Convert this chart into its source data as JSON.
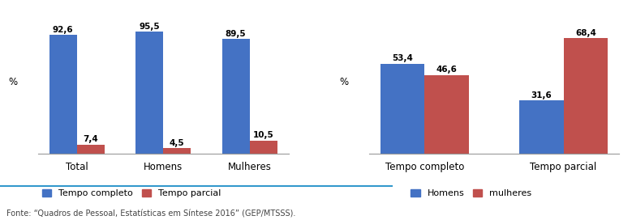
{
  "chart1": {
    "categories": [
      "Total",
      "Homens",
      "Mulheres"
    ],
    "tempo_completo": [
      92.6,
      95.5,
      89.5
    ],
    "tempo_parcial": [
      7.4,
      4.5,
      10.5
    ],
    "color_completo": "#4472C4",
    "color_parcial": "#C0504D",
    "legend_completo": "Tempo completo",
    "legend_parcial": "Tempo parcial",
    "ylabel": "%"
  },
  "chart2": {
    "categories": [
      "Tempo completo",
      "Tempo parcial"
    ],
    "homens": [
      53.4,
      31.6
    ],
    "mulheres": [
      46.6,
      68.4
    ],
    "color_homens": "#4472C4",
    "color_mulheres": "#C0504D",
    "legend_homens": "Homens",
    "legend_mulheres": "mulheres",
    "ylabel": "%"
  },
  "source_text": "Fonte: “Quadros de Pessoal, Estatísticas em Síntese 2016” (GEP/MTSSS).",
  "bar_width": 0.32,
  "value_fontsize": 7.5,
  "label_fontsize": 8.5,
  "legend_fontsize": 8,
  "background_color": "#ffffff",
  "ylim1": 108,
  "ylim2": 82
}
